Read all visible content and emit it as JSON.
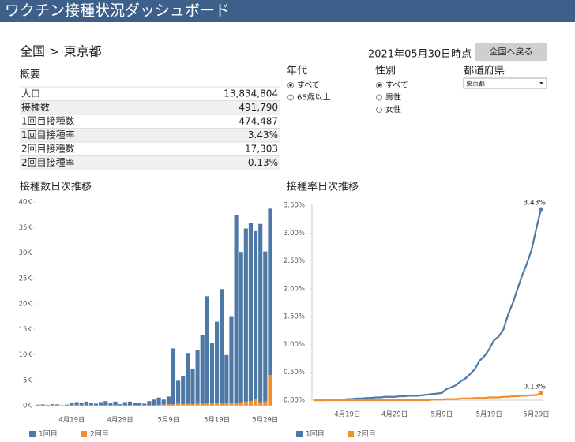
{
  "header": {
    "title": "ワクチン接種状況ダッシュボード"
  },
  "breadcrumb": "全国 > 東京都",
  "as_of": "2021年05月30日時点",
  "back_button": "全国へ戻る",
  "summary": {
    "title": "概要",
    "rows": [
      [
        "人口",
        "13,834,804"
      ],
      [
        "接種数",
        "491,790"
      ],
      [
        "1回目接種数",
        "474,487"
      ],
      [
        "1回目接種率",
        "3.43%"
      ],
      [
        "2回目接種数",
        "17,303"
      ],
      [
        "2回目接種率",
        "0.13%"
      ]
    ]
  },
  "filters": [
    {
      "label": "年代",
      "options": [
        "すべて",
        "65歳以上"
      ],
      "selected": 0
    },
    {
      "label": "性別",
      "options": [
        "すべて",
        "男性",
        "女性"
      ],
      "selected": 0
    }
  ],
  "prefecture_select": {
    "label": "都道府県",
    "value": "東京都"
  },
  "chart_data": [
    {
      "type": "stacked-bar",
      "title": "接種数日次推移",
      "categories": [
        null,
        null,
        null,
        null,
        null,
        null,
        null,
        "4月19日",
        null,
        null,
        null,
        null,
        null,
        null,
        null,
        null,
        null,
        "4月29日",
        null,
        null,
        null,
        null,
        null,
        null,
        null,
        null,
        null,
        "5月9日",
        null,
        null,
        null,
        null,
        null,
        null,
        null,
        null,
        null,
        "5月19日",
        null,
        null,
        null,
        null,
        null,
        null,
        null,
        null,
        null,
        "5月29日",
        null
      ],
      "series": [
        {
          "name": "1回目",
          "color": "#4e79a7",
          "values": [
            200,
            250,
            150,
            300,
            250,
            100,
            200,
            600,
            700,
            500,
            800,
            600,
            400,
            700,
            900,
            600,
            800,
            300,
            700,
            800,
            500,
            600,
            400,
            900,
            1200,
            1500,
            1000,
            1500,
            11000,
            4500,
            5500,
            10000,
            7000,
            10500,
            13500,
            21000,
            12000,
            16000,
            22500,
            9500,
            17000,
            37000,
            29500,
            34000,
            35000,
            33000,
            35000,
            29500,
            32700
          ]
        },
        {
          "name": "2回目",
          "color": "#f28e2b",
          "values": [
            0,
            0,
            0,
            0,
            0,
            0,
            0,
            0,
            0,
            0,
            0,
            0,
            0,
            0,
            0,
            0,
            0,
            0,
            0,
            0,
            0,
            0,
            0,
            0,
            0,
            100,
            200,
            300,
            250,
            400,
            300,
            350,
            300,
            400,
            350,
            500,
            400,
            500,
            400,
            450,
            600,
            500,
            700,
            800,
            900,
            1300,
            700,
            800,
            6000
          ]
        }
      ],
      "ylim": [
        0,
        40000
      ],
      "yticks": [
        {
          "value": 0,
          "label": "0K"
        },
        {
          "value": 5000,
          "label": "5K"
        },
        {
          "value": 10000,
          "label": "10K"
        },
        {
          "value": 15000,
          "label": "15K"
        },
        {
          "value": 20000,
          "label": "20K"
        },
        {
          "value": 25000,
          "label": "25K"
        },
        {
          "value": 30000,
          "label": "30K"
        },
        {
          "value": 35000,
          "label": "35K"
        },
        {
          "value": 40000,
          "label": "40K"
        }
      ],
      "grid": false
    },
    {
      "type": "line",
      "title": "接種率日次推移",
      "categories": [
        null,
        null,
        null,
        null,
        null,
        null,
        null,
        "4月19日",
        null,
        null,
        null,
        null,
        null,
        null,
        null,
        null,
        null,
        "4月29日",
        null,
        null,
        null,
        null,
        null,
        null,
        null,
        null,
        null,
        "5月9日",
        null,
        null,
        null,
        null,
        null,
        null,
        null,
        null,
        null,
        "5月19日",
        null,
        null,
        null,
        null,
        null,
        null,
        null,
        null,
        null,
        "5月29日",
        null
      ],
      "series": [
        {
          "name": "1回目",
          "color": "#4e79a7",
          "values": [
            0,
            0,
            0,
            0.01,
            0.01,
            0.01,
            0.01,
            0.02,
            0.02,
            0.03,
            0.03,
            0.04,
            0.04,
            0.05,
            0.05,
            0.06,
            0.06,
            0.06,
            0.07,
            0.07,
            0.08,
            0.08,
            0.08,
            0.09,
            0.1,
            0.11,
            0.12,
            0.13,
            0.2,
            0.23,
            0.27,
            0.34,
            0.39,
            0.47,
            0.56,
            0.71,
            0.79,
            0.91,
            1.07,
            1.14,
            1.26,
            1.53,
            1.74,
            1.99,
            2.24,
            2.45,
            2.7,
            3.08,
            3.43
          ],
          "value_labels": [
            null,
            null,
            null,
            null,
            null,
            null,
            null,
            null,
            null,
            null,
            null,
            null,
            null,
            null,
            null,
            null,
            null,
            null,
            null,
            null,
            null,
            null,
            null,
            null,
            null,
            null,
            null,
            null,
            null,
            null,
            null,
            null,
            null,
            null,
            null,
            null,
            null,
            null,
            null,
            null,
            null,
            null,
            null,
            null,
            null,
            null,
            null,
            null,
            "3.43%"
          ]
        },
        {
          "name": "2回目",
          "color": "#f28e2b",
          "values": [
            0,
            0,
            0,
            0,
            0,
            0,
            0,
            0,
            0,
            0,
            0,
            0,
            0,
            0,
            0,
            0,
            0,
            0,
            0,
            0,
            0,
            0,
            0,
            0,
            0,
            0.01,
            0.01,
            0.01,
            0.02,
            0.02,
            0.02,
            0.03,
            0.03,
            0.03,
            0.04,
            0.04,
            0.04,
            0.05,
            0.05,
            0.05,
            0.06,
            0.06,
            0.07,
            0.07,
            0.08,
            0.08,
            0.09,
            0.09,
            0.13
          ],
          "value_labels": [
            null,
            null,
            null,
            null,
            null,
            null,
            null,
            null,
            null,
            null,
            null,
            null,
            null,
            null,
            null,
            null,
            null,
            null,
            null,
            null,
            null,
            null,
            null,
            null,
            null,
            null,
            null,
            null,
            null,
            null,
            null,
            null,
            null,
            null,
            null,
            null,
            null,
            null,
            null,
            null,
            null,
            null,
            null,
            null,
            null,
            null,
            null,
            null,
            "0.13%"
          ]
        }
      ],
      "ylim": [
        0,
        3.5
      ],
      "yticks": [
        {
          "value": 0,
          "label": "0.00%"
        },
        {
          "value": 0.5,
          "label": "0.50%"
        },
        {
          "value": 1,
          "label": "1.00%"
        },
        {
          "value": 1.5,
          "label": "1.50%"
        },
        {
          "value": 2,
          "label": "2.00%"
        },
        {
          "value": 2.5,
          "label": "2.50%"
        },
        {
          "value": 3,
          "label": "3.00%"
        },
        {
          "value": 3.5,
          "label": "3.50%"
        }
      ],
      "grid": false
    }
  ]
}
